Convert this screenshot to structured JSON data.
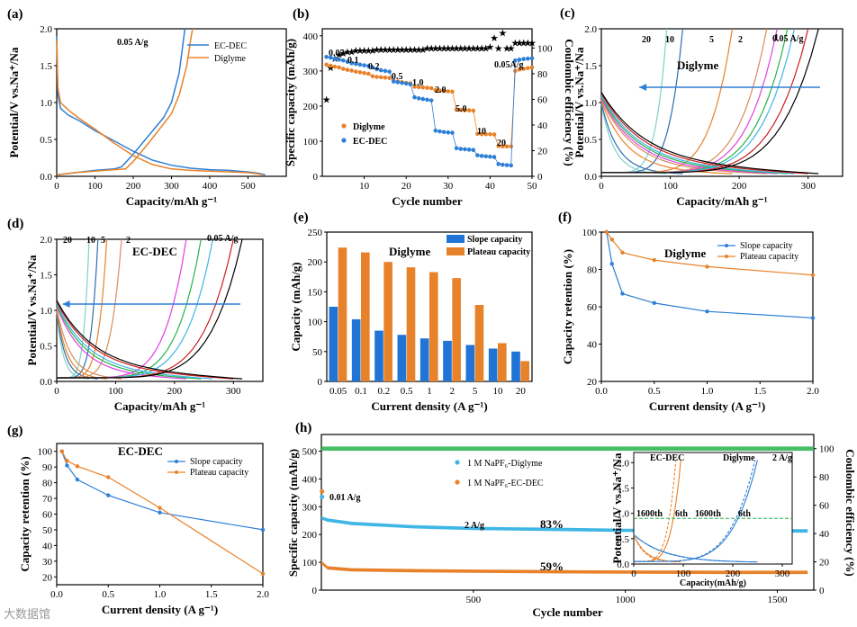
{
  "watermark": "大数据馆",
  "colors": {
    "blue": "#2e7fd6",
    "orange": "#e8822a",
    "green": "#27b34a",
    "lightblue": "#3fb6e6"
  },
  "chart_data": [
    {
      "id": "a",
      "label": "(a)",
      "type": "line",
      "xlabel": "Capacity/mAh g⁻¹",
      "ylabel": "Potential/V vs.Na⁺/Na",
      "xlim": [
        0,
        600
      ],
      "ylim": [
        0,
        2.0
      ],
      "xticks": [
        "0",
        "100",
        "200",
        "300",
        "400",
        "500"
      ],
      "yticks": [
        "0.0",
        "0.5",
        "1.0",
        "1.5",
        "2.0"
      ],
      "annotation": "0.05 A/g",
      "legend": [
        "EC-DEC",
        "Diglyme"
      ],
      "series": [
        {
          "name": "EC-DEC",
          "color": "#2e7fd6",
          "x": [
            0,
            3,
            10,
            30,
            60,
            100,
            150,
            200,
            250,
            300,
            350,
            400,
            450,
            500,
            530,
            545
          ],
          "y": [
            1.9,
            1.1,
            0.92,
            0.83,
            0.75,
            0.62,
            0.48,
            0.34,
            0.22,
            0.15,
            0.11,
            0.09,
            0.08,
            0.06,
            0.04,
            0.02
          ]
        },
        {
          "name": "EC-DEC-charge",
          "color": "#2e7fd6",
          "x": [
            0,
            50,
            100,
            150,
            170,
            200,
            240,
            280,
            300,
            320,
            330,
            335
          ],
          "y": [
            0.02,
            0.05,
            0.08,
            0.1,
            0.13,
            0.3,
            0.55,
            0.8,
            1.0,
            1.4,
            1.8,
            2.0
          ]
        },
        {
          "name": "Diglyme",
          "color": "#e8822a",
          "x": [
            0,
            3,
            10,
            30,
            60,
            100,
            150,
            200,
            250,
            300,
            350,
            400,
            450,
            500,
            530,
            540
          ],
          "y": [
            1.85,
            1.2,
            1.0,
            0.9,
            0.78,
            0.64,
            0.45,
            0.28,
            0.16,
            0.1,
            0.08,
            0.07,
            0.06,
            0.05,
            0.03,
            0.02
          ]
        },
        {
          "name": "Diglyme-charge",
          "color": "#e8822a",
          "x": [
            0,
            50,
            100,
            150,
            180,
            200,
            240,
            270,
            300,
            320,
            340,
            350,
            355
          ],
          "y": [
            0.02,
            0.05,
            0.07,
            0.09,
            0.1,
            0.2,
            0.45,
            0.65,
            0.85,
            1.1,
            1.5,
            1.85,
            2.0
          ]
        }
      ]
    },
    {
      "id": "b",
      "label": "(b)",
      "type": "scatter",
      "xlabel": "Cycle number",
      "ylabel": "Specific capacity (mAh/g)",
      "y2label": "Coulombic efficiency (%)",
      "xlim": [
        0,
        50
      ],
      "ylim": [
        0,
        420
      ],
      "y2lim": [
        0,
        115
      ],
      "xticks": [
        "10",
        "20",
        "30",
        "40",
        "50"
      ],
      "yticks": [
        "0",
        "100",
        "200",
        "300",
        "400"
      ],
      "y2ticks": [
        "0",
        "20",
        "40",
        "60",
        "80",
        "100"
      ],
      "rate_labels": [
        "0.05",
        "0.1",
        "0.2",
        "0.5",
        "1.0",
        "2.0",
        "5.0",
        "10",
        "20",
        "0.05A/g"
      ],
      "legend": [
        "Diglyme",
        "EC-DEC"
      ],
      "series": [
        {
          "name": "Diglyme",
          "color": "#e8822a",
          "x": [
            1,
            2,
            3,
            4,
            5,
            6,
            7,
            8,
            9,
            10,
            11,
            12,
            13,
            14,
            15,
            16,
            17,
            18,
            19,
            20,
            21,
            22,
            23,
            24,
            25,
            26,
            27,
            28,
            29,
            30,
            31,
            32,
            33,
            34,
            35,
            36,
            37,
            38,
            39,
            40,
            41,
            42,
            43,
            44,
            45,
            46,
            47,
            48,
            49,
            50
          ],
          "y": [
            318,
            315,
            312,
            310,
            306,
            303,
            301,
            298,
            296,
            294,
            292,
            285,
            283,
            282,
            281,
            280,
            272,
            270,
            268,
            266,
            265,
            255,
            254,
            253,
            252,
            251,
            245,
            244,
            243,
            242,
            241,
            190,
            189,
            188,
            188,
            187,
            121,
            120,
            120,
            120,
            119,
            86,
            85,
            85,
            85,
            300,
            304,
            306,
            308,
            310
          ]
        },
        {
          "name": "EC-DEC",
          "color": "#2e7fd6",
          "x": [
            1,
            2,
            3,
            4,
            5,
            6,
            7,
            8,
            9,
            10,
            11,
            12,
            13,
            14,
            15,
            16,
            17,
            18,
            19,
            20,
            21,
            22,
            23,
            24,
            25,
            26,
            27,
            28,
            29,
            30,
            31,
            32,
            33,
            34,
            35,
            36,
            37,
            38,
            39,
            40,
            41,
            42,
            43,
            44,
            45,
            46,
            47,
            48,
            49,
            50
          ],
          "y": [
            340,
            338,
            335,
            332,
            330,
            326,
            322,
            320,
            318,
            316,
            314,
            310,
            305,
            302,
            300,
            298,
            270,
            268,
            266,
            264,
            262,
            225,
            222,
            220,
            218,
            216,
            130,
            128,
            126,
            125,
            124,
            80,
            78,
            77,
            76,
            75,
            60,
            58,
            57,
            56,
            55,
            35,
            33,
            32,
            31,
            330,
            332,
            334,
            335,
            336
          ]
        },
        {
          "name": "CE",
          "color": "#27b34a",
          "x": [
            1,
            2,
            3,
            4,
            5,
            6,
            7,
            8,
            9,
            10,
            11,
            12,
            13,
            14,
            15,
            16,
            17,
            18,
            19,
            20,
            21,
            22,
            23,
            24,
            25,
            26,
            27,
            28,
            29,
            30,
            31,
            32,
            33,
            34,
            35,
            36,
            37,
            38,
            39,
            40,
            41,
            42,
            43,
            44,
            45,
            46,
            47,
            48,
            49,
            50
          ],
          "y": [
            60,
            85,
            92,
            95,
            96,
            97,
            97,
            98,
            98,
            98,
            98,
            98,
            99,
            99,
            99,
            99,
            99,
            99,
            99,
            99,
            99,
            99,
            99,
            99,
            100,
            100,
            100,
            100,
            100,
            100,
            100,
            100,
            100,
            100,
            100,
            100,
            100,
            100,
            100,
            101,
            108,
            100,
            112,
            100,
            100,
            104,
            104,
            104,
            104,
            104
          ]
        }
      ]
    },
    {
      "id": "c",
      "label": "(c)",
      "type": "line",
      "xlabel": "Capacity/mAh g⁻¹",
      "ylabel": "Potential/V vs.Na⁺/Na",
      "xlim": [
        0,
        350
      ],
      "ylim": [
        0,
        2.0
      ],
      "xticks": [
        "0",
        "100",
        "200",
        "300"
      ],
      "yticks": [
        "0.0",
        "0.5",
        "1.0",
        "1.5",
        "2.0"
      ],
      "title": "Diglyme",
      "rate_labels": [
        "20",
        "10",
        "5",
        "2",
        "1",
        "0.05 A/g"
      ],
      "curves": [
        {
          "color": "#7fd1c8",
          "end": 95
        },
        {
          "color": "#2e6fb0",
          "end": 118
        },
        {
          "color": "#e8822a",
          "end": 190
        },
        {
          "color": "#d98c5f",
          "end": 240
        },
        {
          "color": "#e040e0",
          "end": 255
        },
        {
          "color": "#27b34a",
          "end": 270
        },
        {
          "color": "#3fb6e6",
          "end": 280
        },
        {
          "color": "#cc1f1f",
          "end": 300
        },
        {
          "color": "#000000",
          "end": 315
        }
      ]
    },
    {
      "id": "d",
      "label": "(d)",
      "type": "line",
      "xlabel": "Capacity/mAh g⁻¹",
      "ylabel": "Potential/V vs.Na⁺/Na",
      "xlim": [
        0,
        350
      ],
      "ylim": [
        0,
        2.0
      ],
      "xticks": [
        "0",
        "100",
        "200",
        "300"
      ],
      "yticks": [
        "0.0",
        "0.5",
        "1.0",
        "1.5",
        "2.0"
      ],
      "title": "EC-DEC",
      "rate_labels": [
        "20",
        "10",
        "5",
        "2",
        "0.05 A/g"
      ],
      "curves": [
        {
          "color": "#7fd1c8",
          "end": 55
        },
        {
          "color": "#2e6fb0",
          "end": 70
        },
        {
          "color": "#e8822a",
          "end": 85
        },
        {
          "color": "#d98c5f",
          "end": 110
        },
        {
          "color": "#e040e0",
          "end": 220
        },
        {
          "color": "#27b34a",
          "end": 245
        },
        {
          "color": "#3fb6e6",
          "end": 265
        },
        {
          "color": "#cc1f1f",
          "end": 300
        },
        {
          "color": "#000000",
          "end": 315
        }
      ]
    },
    {
      "id": "e",
      "label": "(e)",
      "type": "bar",
      "xlabel": "Current density (A g⁻¹)",
      "ylabel": "Capacity (mAh/g)",
      "title": "Diglyme",
      "ylim": [
        0,
        250
      ],
      "yticks": [
        "0",
        "50",
        "100",
        "150",
        "200",
        "250"
      ],
      "categories": [
        "0.05",
        "0.1",
        "0.2",
        "0.5",
        "1",
        "2",
        "5",
        "10",
        "20"
      ],
      "legend": [
        "Slope capacity",
        "Plateau capacity"
      ],
      "series": [
        {
          "name": "Slope capacity",
          "color": "#1f74d6",
          "values": [
            125,
            104,
            85,
            78,
            72,
            68,
            61,
            55,
            50
          ]
        },
        {
          "name": "Plateau capacity",
          "color": "#e8822a",
          "values": [
            224,
            216,
            200,
            191,
            183,
            173,
            128,
            64,
            34
          ]
        }
      ]
    },
    {
      "id": "f",
      "label": "(f)",
      "type": "line",
      "xlabel": "Current density (A g⁻¹)",
      "ylabel": "Capacity retention (%)",
      "title": "Diglyme",
      "xlim": [
        0,
        2.0
      ],
      "ylim": [
        0,
        100
      ],
      "xticks": [
        "0.0",
        "0.5",
        "1.0",
        "1.5",
        "2.0"
      ],
      "yticks": [
        "20",
        "40",
        "60",
        "80",
        "100"
      ],
      "legend": [
        "Slope capacity",
        "Plateau capacity"
      ],
      "series": [
        {
          "name": "Slope capacity",
          "color": "#2e7fd6",
          "x": [
            0.05,
            0.1,
            0.2,
            0.5,
            1.0,
            2.0
          ],
          "y": [
            100,
            83,
            67,
            62,
            57.5,
            54
          ]
        },
        {
          "name": "Plateau capacity",
          "color": "#e8822a",
          "x": [
            0.05,
            0.1,
            0.2,
            0.5,
            1.0,
            2.0
          ],
          "y": [
            100,
            96,
            89,
            85,
            81.5,
            77
          ]
        }
      ]
    },
    {
      "id": "g",
      "label": "(g)",
      "type": "line",
      "xlabel": "Current density (A g⁻¹)",
      "ylabel": "Capacity retention (%)",
      "title": "EC-DEC",
      "xlim": [
        0,
        2.0
      ],
      "ylim": [
        10,
        105
      ],
      "xticks": [
        "0.0",
        "0.5",
        "1.0",
        "1.5",
        "2.0"
      ],
      "yticks": [
        "20",
        "30",
        "40",
        "50",
        "60",
        "70",
        "80",
        "90",
        "100"
      ],
      "legend": [
        "Slope capacity",
        "Plateau capacity"
      ],
      "series": [
        {
          "name": "Slope capacity",
          "color": "#2e7fd6",
          "x": [
            0.05,
            0.1,
            0.2,
            0.5,
            1.0,
            2.0
          ],
          "y": [
            100,
            91,
            82,
            72,
            61,
            50
          ]
        },
        {
          "name": "Plateau capacity",
          "color": "#e8822a",
          "x": [
            0.05,
            0.1,
            0.2,
            0.5,
            1.0,
            2.0
          ],
          "y": [
            100,
            94,
            90.5,
            83.5,
            64,
            22
          ]
        }
      ]
    },
    {
      "id": "h",
      "label": "(h)",
      "type": "scatter",
      "xlabel": "Cycle number",
      "ylabel": "Specific capacity (mAh/g)",
      "y2label": "Coulombic efficiency (%)",
      "xlim": [
        0,
        1620
      ],
      "ylim": [
        0,
        560
      ],
      "y2lim": [
        0,
        110
      ],
      "xticks": [
        "500",
        "1000",
        "1500"
      ],
      "yticks": [
        "0",
        "100",
        "200",
        "300",
        "400",
        "500"
      ],
      "y2ticks": [
        "0",
        "20",
        "40",
        "60",
        "80",
        "100"
      ],
      "annotations": [
        "0.01 A/g",
        "2 A/g",
        "83%",
        "59%"
      ],
      "legend": [
        "1 M NaPF₆-Diglyme",
        "1 M NaPF₆-EC-DEC"
      ],
      "series": [
        {
          "name": "1 M NaPF₆-Diglyme",
          "color": "#3fb6e6",
          "x": [
            0,
            20,
            100,
            300,
            500,
            800,
            1000,
            1300,
            1600
          ],
          "y": [
            260,
            252,
            240,
            228,
            222,
            218,
            215,
            214,
            213
          ]
        },
        {
          "name": "1 M NaPF₆-EC-DEC",
          "color": "#e8822a",
          "x": [
            0,
            20,
            100,
            300,
            500,
            800,
            1000,
            1300,
            1600
          ],
          "y": [
            100,
            80,
            73,
            70,
            68,
            66,
            65,
            64,
            64
          ]
        },
        {
          "name": "CE",
          "color": "#27b34a",
          "x": [
            0,
            1620
          ],
          "y": [
            100,
            100
          ]
        }
      ],
      "inset": {
        "xlabel": "Capacity(mAh/g)",
        "ylabel": "Potential/V vs.Na⁺/Na",
        "xticks": [
          "0",
          "100",
          "200",
          "300"
        ],
        "yticks": [
          "0.0",
          "0.5",
          "1.0",
          "1.5",
          "2.0"
        ],
        "labels": [
          "EC-DEC",
          "Diglyme",
          "2 A/g",
          "1600th",
          "6th",
          "1600th",
          "6th"
        ]
      }
    }
  ]
}
